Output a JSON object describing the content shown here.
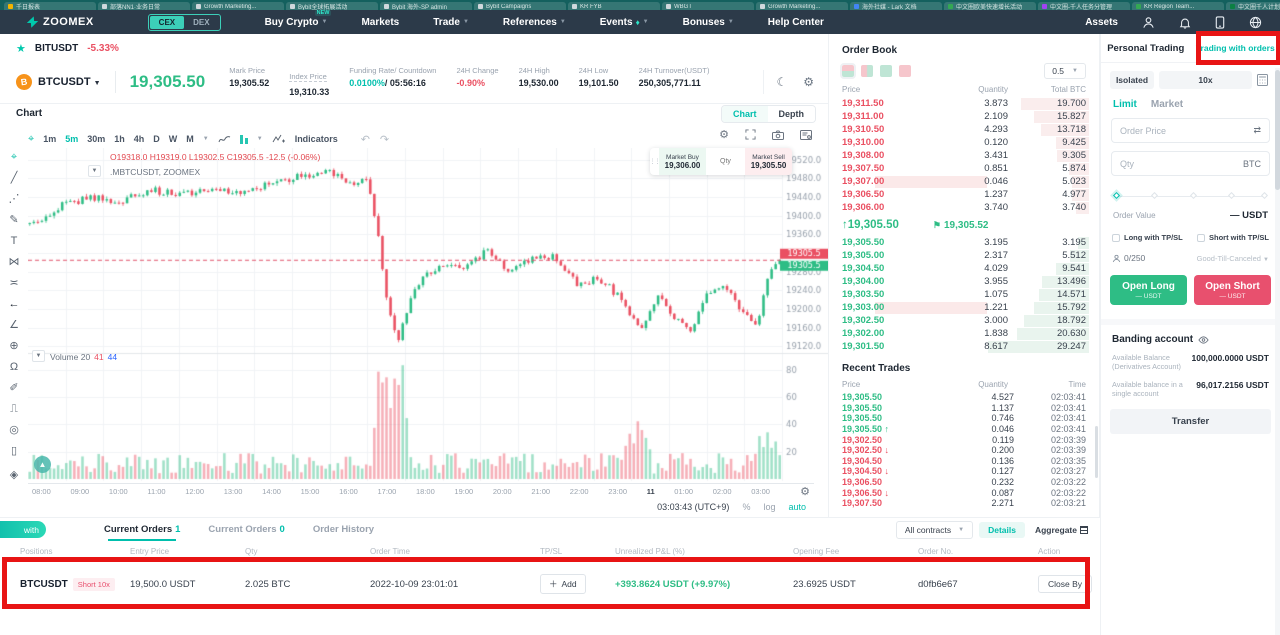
{
  "colors": {
    "accent": "#00bfad",
    "up": "#2ebd85",
    "down": "#ea5062",
    "navbar": "#2c3a49",
    "strip": "#14605e",
    "annotation": "#e81414",
    "volume_blue": "#2962ff",
    "btc_orange": "#f7931a"
  },
  "browser": {
    "tabs": [
      {
        "title": "千日报表",
        "fav": "#f4b400"
      },
      {
        "title": "部落NN1·业务日常",
        "fav": "#cfd8dc"
      },
      {
        "title": "Growth Marketing...",
        "fav": "#cfd8dc"
      },
      {
        "title": "Bybit全球拓展活动",
        "fav": "#cfd8dc"
      },
      {
        "title": "Bybit 海外-SP admin",
        "fav": "#cfd8dc"
      },
      {
        "title": "Bybit Campaigns",
        "fav": "#cfd8dc"
      },
      {
        "title": "KR FYB",
        "fav": "#cfd8dc"
      },
      {
        "title": "WBGT",
        "fav": "#cfd8dc"
      },
      {
        "title": "Growth Marketing...",
        "fav": "#cfd8dc"
      },
      {
        "title": "海外社媒 - Lark 文档",
        "fav": "#4285f4"
      },
      {
        "title": "中文圈欧美快速增长活动",
        "fav": "#34a853"
      },
      {
        "title": "中文圈-千人任务分管理",
        "fav": "#a142f4"
      },
      {
        "title": "KR Region Team...",
        "fav": "#34a853"
      },
      {
        "title": "中文圈千人计划群",
        "fav": "#0b8043"
      }
    ]
  },
  "navbar": {
    "logo": "ZOOMEX",
    "cex": "CEX",
    "dex": "DEX",
    "assets": "Assets",
    "menu": [
      {
        "label": "Buy Crypto",
        "badge": "NEW",
        "caret": true
      },
      {
        "label": "Markets"
      },
      {
        "label": "Trade",
        "caret": true
      },
      {
        "label": "References",
        "caret": true
      },
      {
        "label": "Events",
        "caret": true,
        "flame": true
      },
      {
        "label": "Bonuses",
        "caret": true
      },
      {
        "label": "Help Center"
      }
    ]
  },
  "ticker": {
    "fav_symbol": "BITUSDT",
    "fav_change": "-5.33%",
    "symbol": "BTCUSDT",
    "last": "19,305.50",
    "stats": [
      {
        "label": "Mark Price",
        "value": "19,305.52"
      },
      {
        "label": "Index Price",
        "value": "19,310.33",
        "underline": true
      },
      {
        "label": "Funding Rate/ Countdown",
        "value": "0.0100%",
        "value2": "/ 05:56:16",
        "cls": "accent"
      },
      {
        "label": "24H Change",
        "value": "-0.90%",
        "cls": "down"
      },
      {
        "label": "24H High",
        "value": "19,530.00"
      },
      {
        "label": "24H Low",
        "value": "19,101.50"
      },
      {
        "label": "24H Turnover(USDT)",
        "value": "250,305,771.11"
      }
    ]
  },
  "chart": {
    "title": "Chart",
    "view_chart": "Chart",
    "view_depth": "Depth",
    "timeframes": [
      "1m",
      "5m",
      "30m",
      "1h",
      "4h",
      "D",
      "W",
      "M"
    ],
    "active_tf": "5m",
    "indicators": "Indicators",
    "ohlc": "O19318.0 H19319.0 L19302.5 C19305.5 -12.5 (-0.06%)",
    "symbol_legend": ".MBTCUSDT, ZOOMEX",
    "volume_legend": "Volume 20",
    "vol_v1": "41",
    "vol_v2": "44",
    "market_buy_label": "Market Buy",
    "market_buy_price": "19,306.00",
    "qty_placeholder": "Qty",
    "market_sell_label": "Market Sell",
    "market_sell_price": "19,305.50",
    "clock": "03:03:43 (UTC+9)",
    "pct": "%",
    "log": "log",
    "auto": "auto",
    "time_labels": [
      "08:00",
      "09:00",
      "10:00",
      "11:00",
      "12:00",
      "13:00",
      "14:00",
      "15:00",
      "16:00",
      "17:00",
      "18:00",
      "19:00",
      "20:00",
      "21:00",
      "22:00",
      "23:00",
      "11",
      "01:00",
      "02:00",
      "03:00"
    ]
  },
  "chart_data": {
    "type": "candlestick",
    "symbol": "BTCUSDT 5m",
    "last_price": 19305.5,
    "price_badge": "19305.5",
    "axis_ticks": [
      19520,
      19480,
      19440,
      19400,
      19360,
      19320,
      19280,
      19240,
      19200,
      19160,
      19120
    ],
    "vol_ticks": [
      80,
      60,
      40,
      20
    ],
    "candles": 186,
    "anchors": [
      [
        0,
        19380
      ],
      [
        0.04,
        19420
      ],
      [
        0.08,
        19440
      ],
      [
        0.12,
        19430
      ],
      [
        0.16,
        19455
      ],
      [
        0.2,
        19445
      ],
      [
        0.24,
        19460
      ],
      [
        0.28,
        19450
      ],
      [
        0.32,
        19470
      ],
      [
        0.36,
        19485
      ],
      [
        0.4,
        19495
      ],
      [
        0.43,
        19470
      ],
      [
        0.45,
        19480
      ],
      [
        0.465,
        19350
      ],
      [
        0.478,
        19200
      ],
      [
        0.49,
        19130
      ],
      [
        0.505,
        19210
      ],
      [
        0.52,
        19260
      ],
      [
        0.55,
        19300
      ],
      [
        0.58,
        19290
      ],
      [
        0.61,
        19325
      ],
      [
        0.64,
        19280
      ],
      [
        0.67,
        19305
      ],
      [
        0.7,
        19315
      ],
      [
        0.73,
        19255
      ],
      [
        0.76,
        19265
      ],
      [
        0.79,
        19220
      ],
      [
        0.815,
        19150
      ],
      [
        0.84,
        19235
      ],
      [
        0.862,
        19175
      ],
      [
        0.882,
        19155
      ],
      [
        0.905,
        19235
      ],
      [
        0.93,
        19245
      ],
      [
        0.952,
        19185
      ],
      [
        0.97,
        19170
      ],
      [
        0.985,
        19270
      ],
      [
        1,
        19305.5
      ]
    ]
  },
  "order_book": {
    "title": "Order Book",
    "tick": "0.5",
    "headers": [
      "Price",
      "Quantity",
      "Total BTC"
    ],
    "asks": [
      [
        "19,311.50",
        "3.873",
        "19.700"
      ],
      [
        "19,311.00",
        "2.109",
        "15.827"
      ],
      [
        "19,310.50",
        "4.293",
        "13.718"
      ],
      [
        "19,310.00",
        "0.120",
        "9.425"
      ],
      [
        "19,308.00",
        "3.431",
        "9.305"
      ],
      [
        "19,307.50",
        "0.851",
        "5.874"
      ],
      [
        "19,307.00",
        "0.046",
        "5.023"
      ],
      [
        "19,306.50",
        "1.237",
        "4.977"
      ],
      [
        "19,306.00",
        "3.740",
        "3.740"
      ]
    ],
    "ask_flash": 6,
    "mid_price": "19,305.50",
    "mark_price": "19,305.52",
    "bids": [
      [
        "19,305.50",
        "3.195",
        "3.195"
      ],
      [
        "19,305.00",
        "2.317",
        "5.512"
      ],
      [
        "19,304.50",
        "4.029",
        "9.541"
      ],
      [
        "19,304.00",
        "3.955",
        "13.496"
      ],
      [
        "19,303.50",
        "1.075",
        "14.571"
      ],
      [
        "19,303.00",
        "1.221",
        "15.792"
      ],
      [
        "19,302.50",
        "3.000",
        "18.792"
      ],
      [
        "19,302.00",
        "1.838",
        "20.630"
      ],
      [
        "19,301.50",
        "8.617",
        "29.247"
      ]
    ],
    "bid_flash": 5,
    "max_total": 30
  },
  "recent_trades": {
    "title": "Recent Trades",
    "headers": [
      "Price",
      "Quantity",
      "Time"
    ],
    "rows": [
      [
        "19,305.50",
        "up",
        "",
        "4.527",
        "02:03:41"
      ],
      [
        "19,305.50",
        "up",
        "",
        "1.137",
        "02:03:41"
      ],
      [
        "19,305.50",
        "up",
        "",
        "0.746",
        "02:03:41"
      ],
      [
        "19,305.50",
        "up",
        "↑",
        "0.046",
        "02:03:41"
      ],
      [
        "19,302.50",
        "down",
        "",
        "0.119",
        "02:03:39"
      ],
      [
        "19,302.50",
        "down",
        "↓",
        "0.200",
        "02:03:39"
      ],
      [
        "19,304.50",
        "down",
        "",
        "0.136",
        "02:03:35"
      ],
      [
        "19,304.50",
        "down",
        "↓",
        "0.127",
        "02:03:27"
      ],
      [
        "19,306.50",
        "down",
        "",
        "0.232",
        "02:03:22"
      ],
      [
        "19,306.50",
        "down",
        "↓",
        "0.087",
        "02:03:22"
      ],
      [
        "19,307.50",
        "down",
        "",
        "2.271",
        "02:03:21"
      ]
    ]
  },
  "trade_panel": {
    "tab_personal": "Personal Trading",
    "tab_orders": "Trading with orders",
    "isolated": "Isolated",
    "leverage": "10x",
    "limit": "Limit",
    "market": "Market",
    "order_price_ph": "Order Price",
    "qty_ph": "Qty",
    "qty_unit": "BTC",
    "order_value_label": "Order Value",
    "order_value": "— USDT",
    "long_tpsl": "Long with TP/SL",
    "short_tpsl": "Short with TP/SL",
    "counter": "0/250",
    "tif": "Good-Till-Canceled",
    "open_long": "Open Long",
    "open_long_sub": "— USDT",
    "open_short": "Open Short",
    "open_short_sub": "— USDT",
    "banding_title": "Banding account",
    "balance_rows": [
      {
        "label": "Available Balance (Derivatives Account)",
        "value": "100,000.0000 USDT"
      },
      {
        "label": "Available balance in a single account",
        "value": "96,017.2156 USDT"
      }
    ],
    "transfer": "Transfer"
  },
  "positions": {
    "pill": "with",
    "tabs": [
      {
        "label": "Current Orders",
        "count": "1",
        "active": true
      },
      {
        "label": "Current Orders",
        "count": "0",
        "active": false
      },
      {
        "label": "Order History",
        "count": "",
        "active": false
      }
    ],
    "all_contracts": "All contracts",
    "details": "Details",
    "aggregate": "Aggregate",
    "headers": [
      "Positions",
      "Entry Price",
      "Qty",
      "Order Time",
      "TP/SL",
      "Unrealized P&L (%)",
      "Opening Fee",
      "Order No.",
      "Action"
    ],
    "row": {
      "symbol": "BTCUSDT",
      "side": "Short 10x",
      "entry": "19,500.0 USDT",
      "qty": "2.025 BTC",
      "time": "2022-10-09 23:01:01",
      "add": "Add",
      "upl": "+393.8624 USDT (+9.97%)",
      "fee": "23.6925 USDT",
      "order_no": "d0fb6e67",
      "action": "Close By"
    }
  }
}
